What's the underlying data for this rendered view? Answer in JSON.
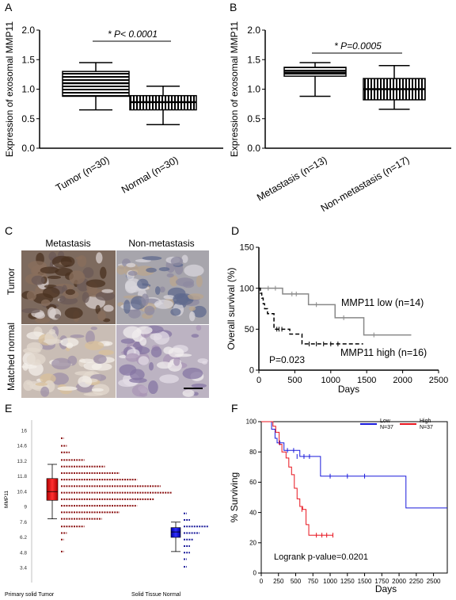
{
  "chart_data": [
    {
      "panel": "A",
      "type": "box",
      "ylabel": "Expression of exosomal MMP11",
      "ylim": [
        0,
        2.0
      ],
      "yticks": [
        "0.0",
        "0.5",
        "1.0",
        "1.5",
        "2.0"
      ],
      "categories": [
        "Tumor (n=30)",
        "Normal (n=30)"
      ],
      "boxes": [
        {
          "min": 0.65,
          "q1": 0.88,
          "median": 1.1,
          "q3": 1.3,
          "max": 1.45
        },
        {
          "min": 0.4,
          "q1": 0.65,
          "median": 0.78,
          "q3": 0.89,
          "max": 1.05
        }
      ],
      "annotation": "* P< 0.0001"
    },
    {
      "panel": "B",
      "type": "box",
      "ylabel": "Expression of exosomal MMP11",
      "ylim": [
        0,
        2.0
      ],
      "yticks": [
        "0.0",
        "0.5",
        "1.0",
        "1.5",
        "2.0"
      ],
      "categories": [
        "Metastasis (n=13)",
        "Non-metastasis (n=17)"
      ],
      "boxes": [
        {
          "min": 0.88,
          "q1": 1.22,
          "median": 1.28,
          "q3": 1.37,
          "max": 1.45
        },
        {
          "min": 0.66,
          "q1": 0.82,
          "median": 1.0,
          "q3": 1.18,
          "max": 1.4
        }
      ],
      "annotation": "* P=0.0005"
    },
    {
      "panel": "C",
      "type": "image-grid",
      "column_labels": [
        "Metastasis",
        "Non-metastasis"
      ],
      "row_labels": [
        "Tumor",
        "Matched normal"
      ]
    },
    {
      "panel": "D",
      "type": "line",
      "ylabel": "Overall survival (%)",
      "xlabel": "Days",
      "xlim": [
        0,
        2500
      ],
      "ylim": [
        0,
        150
      ],
      "xticks": [
        "0",
        "500",
        "1000",
        "1500",
        "2000",
        "2500"
      ],
      "yticks": [
        "0",
        "50",
        "100",
        "150"
      ],
      "series": [
        {
          "name": "MMP11 low (n=14)",
          "style": "solid",
          "color": "#888888",
          "x": [
            0,
            330,
            690,
            1060,
            1460,
            2120
          ],
          "y": [
            100,
            93,
            80,
            64,
            43,
            43
          ],
          "censors": [
            [
              130,
              100
            ],
            [
              230,
              100
            ],
            [
              460,
              93
            ],
            [
              520,
              93
            ],
            [
              800,
              80
            ],
            [
              1180,
              64
            ],
            [
              1600,
              43
            ]
          ]
        },
        {
          "name": "MMP11 high  (n=16)",
          "style": "dashed",
          "color": "#000000",
          "x": [
            0,
            20,
            40,
            60,
            80,
            120,
            210,
            430,
            600,
            1450
          ],
          "y": [
            100,
            94,
            88,
            81,
            75,
            69,
            50,
            44,
            32,
            32
          ],
          "censors": [
            [
              250,
              50
            ],
            [
              280,
              50
            ],
            [
              320,
              50
            ],
            [
              700,
              32
            ],
            [
              800,
              32
            ],
            [
              900,
              32
            ],
            [
              1000,
              32
            ],
            [
              1100,
              32
            ]
          ]
        }
      ],
      "annotation": "P=0.023"
    },
    {
      "panel": "E",
      "type": "box-histogram",
      "ylabel": "MMP11",
      "ylim": [
        2.2,
        16.6
      ],
      "yticks": [
        "3.4",
        "4.8",
        "6.2",
        "7.6",
        "9",
        "10.4",
        "11.8",
        "13.2",
        "14.6",
        "16"
      ],
      "categories": [
        "Primary solid Tumor",
        "Solid Tissue Normal"
      ],
      "boxes": [
        {
          "color": "#ee1c1c",
          "min": 7.9,
          "q1": 9.6,
          "median": 10.4,
          "q3": 11.6,
          "max": 12.9
        },
        {
          "color": "#1a1adb",
          "min": 4.9,
          "q1": 6.2,
          "median": 6.7,
          "q3": 7.1,
          "max": 7.6
        }
      ],
      "tumor_hist": [
        {
          "y": 4.9,
          "count": 1
        },
        {
          "y": 6.0,
          "count": 1
        },
        {
          "y": 6.6,
          "count": 2
        },
        {
          "y": 7.2,
          "count": 8
        },
        {
          "y": 7.9,
          "count": 14
        },
        {
          "y": 8.5,
          "count": 20
        },
        {
          "y": 9.1,
          "count": 26
        },
        {
          "y": 9.7,
          "count": 32
        },
        {
          "y": 10.3,
          "count": 38
        },
        {
          "y": 10.9,
          "count": 34
        },
        {
          "y": 11.5,
          "count": 26
        },
        {
          "y": 12.1,
          "count": 20
        },
        {
          "y": 12.7,
          "count": 15
        },
        {
          "y": 13.3,
          "count": 8
        },
        {
          "y": 14.0,
          "count": 3
        },
        {
          "y": 14.6,
          "count": 2
        },
        {
          "y": 15.3,
          "count": 1
        }
      ],
      "normal_hist": [
        {
          "y": 3.5,
          "count": 1
        },
        {
          "y": 4.2,
          "count": 1
        },
        {
          "y": 4.8,
          "count": 2
        },
        {
          "y": 5.4,
          "count": 2
        },
        {
          "y": 6.0,
          "count": 3
        },
        {
          "y": 6.6,
          "count": 5
        },
        {
          "y": 7.2,
          "count": 8
        },
        {
          "y": 7.8,
          "count": 2
        },
        {
          "y": 8.4,
          "count": 1
        }
      ]
    },
    {
      "panel": "F",
      "type": "line",
      "ylabel": "% Surviving",
      "xlabel": "Days",
      "xlim": [
        0,
        2700
      ],
      "ylim": [
        0,
        100
      ],
      "xticks": [
        "0",
        "250",
        "500",
        "750",
        "1000",
        "1250",
        "1500",
        "1750",
        "2000",
        "2250",
        "2500"
      ],
      "yticks": [
        "0",
        "20",
        "40",
        "60",
        "80",
        "100"
      ],
      "legend": [
        {
          "name": "Low",
          "n": "N=37"
        },
        {
          "name": "High",
          "n": "N=37"
        }
      ],
      "series": [
        {
          "name": "Low",
          "color": "#1a1adb",
          "x": [
            0,
            150,
            200,
            230,
            330,
            560,
            860,
            2100,
            2700
          ],
          "y": [
            100,
            95,
            89,
            86,
            81,
            77,
            64,
            43,
            43
          ],
          "censors": [
            [
              270,
              86
            ],
            [
              380,
              81
            ],
            [
              470,
              81
            ],
            [
              520,
              77
            ],
            [
              620,
              77
            ],
            [
              700,
              77
            ],
            [
              1000,
              64
            ],
            [
              1250,
              64
            ],
            [
              1500,
              64
            ]
          ]
        },
        {
          "name": "High",
          "color": "#e8141e",
          "x": [
            0,
            170,
            210,
            260,
            300,
            360,
            400,
            440,
            480,
            520,
            560,
            600,
            650,
            690,
            1040
          ],
          "y": [
            100,
            97,
            93,
            85,
            80,
            76,
            70,
            65,
            56,
            49,
            44,
            42,
            32,
            25,
            25
          ],
          "censors": [
            [
              590,
              42
            ],
            [
              800,
              25
            ],
            [
              880,
              25
            ],
            [
              950,
              25
            ],
            [
              1040,
              25
            ]
          ]
        }
      ],
      "annotation": "Logrank p-value=0.0201"
    }
  ],
  "panel_letters": [
    "A",
    "B",
    "C",
    "D",
    "E",
    "F"
  ]
}
